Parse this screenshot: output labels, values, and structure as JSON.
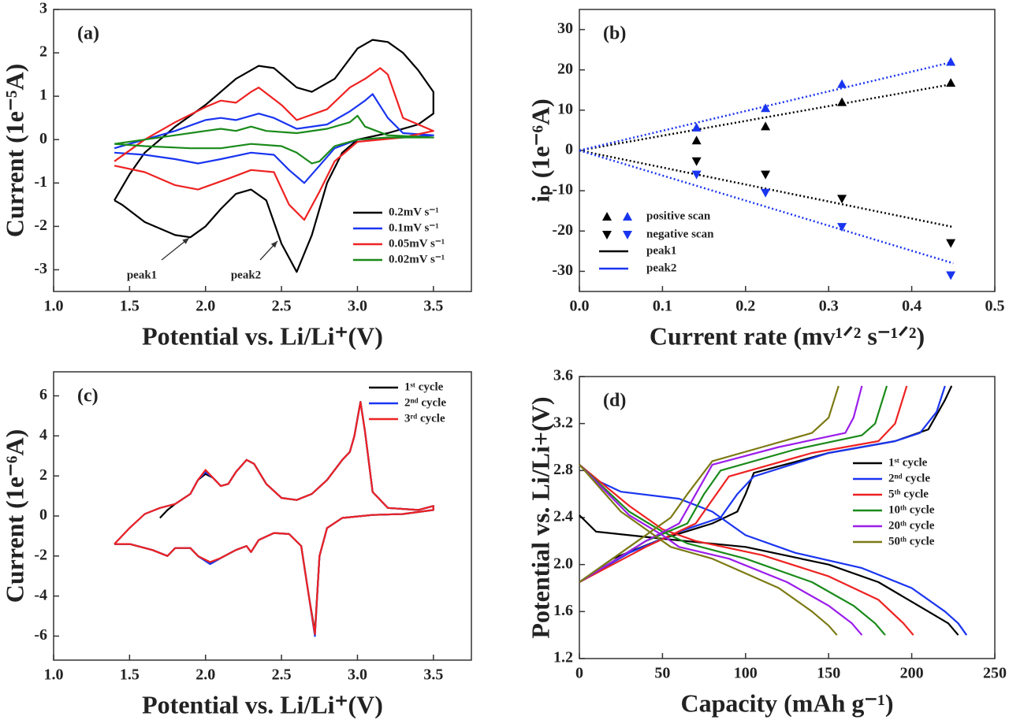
{
  "chart_data": [
    {
      "type": "line",
      "title": "(a)",
      "xlabel": "Potential vs. Li/Li⁺(V)",
      "ylabel": "Current (1e⁻⁵A)",
      "xlim": [
        1.0,
        3.75
      ],
      "ylim": [
        -3.5,
        3
      ],
      "xticks": [
        {
          "value": 1,
          "label": "1.0"
        },
        1.5,
        {
          "value": 2,
          "label": "2.0"
        },
        2.5,
        {
          "value": 3,
          "label": "3.0"
        },
        3.5
      ],
      "yticks": [
        -3,
        -2,
        -1,
        0,
        1,
        2,
        3
      ],
      "grid": false,
      "legend": "lower right",
      "annotations": [
        "peak1",
        "peak2"
      ],
      "series": [
        {
          "name": "0.2mV s⁻¹",
          "color": "#000000",
          "x": [
            1.4,
            1.5,
            1.6,
            1.8,
            2.0,
            2.2,
            2.35,
            2.45,
            2.6,
            2.7,
            2.85,
            3.0,
            3.1,
            3.2,
            3.3,
            3.4,
            3.5,
            3.5,
            3.4,
            3.2,
            3.0,
            2.9,
            2.8,
            2.7,
            2.6,
            2.5,
            2.4,
            2.3,
            2.2,
            2.1,
            2.0,
            1.9,
            1.8,
            1.6,
            1.45,
            1.4
          ],
          "values": [
            -1.4,
            -0.8,
            -0.3,
            0.3,
            0.8,
            1.4,
            1.7,
            1.65,
            1.2,
            1.1,
            1.4,
            2.1,
            2.3,
            2.25,
            2.0,
            1.6,
            1.1,
            0.6,
            0.35,
            0.15,
            0,
            -0.3,
            -1.0,
            -2.2,
            -3.05,
            -2.4,
            -1.4,
            -1.15,
            -1.25,
            -1.6,
            -2.0,
            -2.25,
            -2.2,
            -1.9,
            -1.5,
            -1.4
          ]
        },
        {
          "name": "0.1mV s⁻¹",
          "color": "#1a35f0",
          "x": [
            1.4,
            1.6,
            1.8,
            2.0,
            2.1,
            2.2,
            2.35,
            2.45,
            2.6,
            2.8,
            2.95,
            3.05,
            3.1,
            3.2,
            3.3,
            3.5,
            3.3,
            3.0,
            2.85,
            2.75,
            2.65,
            2.55,
            2.45,
            2.3,
            2.1,
            1.95,
            1.8,
            1.6,
            1.4
          ],
          "values": [
            -0.2,
            0,
            0.2,
            0.45,
            0.5,
            0.45,
            0.6,
            0.5,
            0.25,
            0.35,
            0.65,
            0.9,
            1.05,
            0.5,
            0.15,
            0.1,
            0.05,
            0,
            -0.2,
            -0.6,
            -1.0,
            -0.7,
            -0.35,
            -0.3,
            -0.45,
            -0.55,
            -0.45,
            -0.35,
            -0.3
          ]
        },
        {
          "name": "0.05mV s⁻¹",
          "color": "#ee2222",
          "x": [
            1.4,
            1.6,
            1.8,
            2.0,
            2.1,
            2.2,
            2.3,
            2.35,
            2.5,
            2.6,
            2.8,
            2.95,
            3.05,
            3.15,
            3.2,
            3.3,
            3.5,
            3.3,
            3.0,
            2.85,
            2.75,
            2.65,
            2.55,
            2.45,
            2.3,
            2.15,
            1.95,
            1.8,
            1.6,
            1.4
          ],
          "values": [
            -0.5,
            0,
            0.4,
            0.75,
            0.9,
            0.85,
            1.1,
            1.2,
            0.8,
            0.45,
            0.7,
            1.2,
            1.4,
            1.65,
            1.5,
            0.5,
            0.2,
            0.05,
            -0.05,
            -0.5,
            -1.2,
            -1.85,
            -1.5,
            -0.75,
            -0.7,
            -0.9,
            -1.15,
            -1.05,
            -0.75,
            -0.6
          ]
        },
        {
          "name": "0.02mV s⁻¹",
          "color": "#1a8a1a",
          "x": [
            1.4,
            1.6,
            1.8,
            2.0,
            2.1,
            2.2,
            2.3,
            2.4,
            2.6,
            2.8,
            2.95,
            3.0,
            3.05,
            3.2,
            3.5,
            3.2,
            3.0,
            2.85,
            2.75,
            2.7,
            2.6,
            2.5,
            2.3,
            2.1,
            1.9,
            1.6,
            1.4
          ],
          "values": [
            -0.1,
            0,
            0.1,
            0.2,
            0.25,
            0.2,
            0.3,
            0.2,
            0.15,
            0.25,
            0.4,
            0.55,
            0.3,
            0.1,
            0.05,
            0.05,
            0,
            -0.15,
            -0.5,
            -0.55,
            -0.3,
            -0.15,
            -0.1,
            -0.2,
            -0.2,
            -0.15,
            -0.1
          ]
        }
      ]
    },
    {
      "type": "scatter",
      "title": "(b)",
      "xlabel": "Current rate (mv¹ᐟ² s⁻¹ᐟ²)",
      "ylabel": "iₚ (1e⁻⁶A)",
      "xlim": [
        0,
        0.5
      ],
      "ylim": [
        -35,
        35
      ],
      "xticks": [
        {
          "value": 0,
          "label": "0.0"
        },
        0.1,
        0.2,
        0.3,
        0.4,
        0.5
      ],
      "yticks": [
        -30,
        -20,
        -10,
        0,
        10,
        20,
        30
      ],
      "grid": false,
      "legend": "lower left",
      "marker_legend": [
        "positive scan",
        "negative scan"
      ],
      "x": [
        0.141,
        0.224,
        0.316,
        0.447
      ],
      "fit_x": [
        0,
        0.45
      ],
      "series": [
        {
          "name": "peak1",
          "color": "#000000",
          "positive": [
            2.5,
            6,
            12,
            16.8
          ],
          "negative": [
            -2.7,
            -6,
            -12,
            -23
          ],
          "fit_positive": [
            0,
            16.5
          ],
          "fit_negative": [
            0,
            -19
          ]
        },
        {
          "name": "peak2",
          "color": "#1a35f0",
          "positive": [
            5.7,
            10.5,
            16.5,
            22
          ],
          "negative": [
            -6,
            -10.5,
            -19,
            -31
          ],
          "fit_positive": [
            0,
            22
          ],
          "fit_negative": [
            0,
            -28
          ]
        }
      ]
    },
    {
      "type": "line",
      "title": "(c)",
      "xlabel": "Potential vs. Li/Li⁺(V)",
      "ylabel": "Current (1e⁻⁶A)",
      "xlim": [
        1.0,
        3.75
      ],
      "ylim": [
        -7.2,
        7.2
      ],
      "xticks": [
        {
          "value": 1,
          "label": "1.0"
        },
        1.5,
        {
          "value": 2,
          "label": "2.0"
        },
        2.5,
        {
          "value": 3,
          "label": "3.0"
        },
        3.5
      ],
      "yticks": [
        -6,
        -4,
        -2,
        0,
        2,
        4,
        6
      ],
      "grid": false,
      "legend": "upper right",
      "series": [
        {
          "name": "1ˢᵗ cycle",
          "color": "#000000",
          "x": [
            1.7,
            1.75,
            1.8,
            1.9,
            1.95,
            2.0,
            2.05,
            2.1,
            2.15,
            2.2,
            2.27,
            2.32,
            2.4,
            2.5,
            2.6,
            2.7,
            2.8,
            2.9,
            2.95,
            2.98,
            3.02,
            3.05,
            3.1,
            3.2,
            3.4,
            3.5,
            3.5,
            3.3,
            3.1,
            2.9,
            2.8,
            2.75,
            2.72,
            2.68,
            2.63,
            2.55,
            2.45,
            2.35,
            2.3,
            2.27,
            2.2,
            2.1,
            2.03,
            1.95,
            1.9,
            1.8,
            1.75,
            1.65,
            1.5,
            1.4
          ],
          "values": [
            -0.1,
            0.3,
            0.6,
            1.1,
            1.8,
            2.1,
            1.9,
            1.5,
            1.6,
            2.2,
            2.8,
            2.6,
            1.6,
            0.9,
            0.8,
            1.1,
            1.8,
            2.8,
            3.2,
            4.0,
            5.7,
            4.2,
            1.2,
            0.4,
            0.3,
            0.5,
            0.3,
            0.1,
            0.05,
            -0.1,
            -0.6,
            -2.0,
            -5.8,
            -4.0,
            -1.5,
            -0.9,
            -0.85,
            -1.2,
            -1.8,
            -1.5,
            -1.7,
            -2.1,
            -2.4,
            -2.0,
            -1.6,
            -1.6,
            -2.0,
            -1.7,
            -1.4,
            -1.4
          ]
        },
        {
          "name": "2ⁿᵈ cycle",
          "color": "#1a35f0",
          "x": [
            1.4,
            1.5,
            1.6,
            1.7,
            1.8,
            1.9,
            1.95,
            2.0,
            2.05,
            2.1,
            2.15,
            2.2,
            2.27,
            2.32,
            2.4,
            2.5,
            2.6,
            2.7,
            2.8,
            2.9,
            2.95,
            2.98,
            3.02,
            3.05,
            3.1,
            3.2,
            3.4,
            3.5,
            3.5,
            3.3,
            3.1,
            2.9,
            2.8,
            2.75,
            2.72,
            2.68,
            2.63,
            2.55,
            2.45,
            2.35,
            2.3,
            2.27,
            2.2,
            2.1,
            2.03,
            1.95,
            1.9,
            1.8,
            1.75,
            1.65,
            1.5,
            1.4
          ],
          "values": [
            -1.4,
            -0.6,
            0.1,
            0.4,
            0.6,
            1.1,
            1.8,
            2.2,
            1.9,
            1.5,
            1.6,
            2.2,
            2.8,
            2.6,
            1.6,
            0.9,
            0.8,
            1.1,
            1.8,
            2.8,
            3.2,
            4.0,
            5.7,
            4.2,
            1.2,
            0.4,
            0.3,
            0.5,
            0.3,
            0.1,
            0.05,
            -0.1,
            -0.6,
            -2.0,
            -6.0,
            -4.0,
            -1.5,
            -0.9,
            -0.85,
            -1.2,
            -1.8,
            -1.5,
            -1.7,
            -2.1,
            -2.4,
            -2.0,
            -1.6,
            -1.6,
            -2.0,
            -1.7,
            -1.4,
            -1.4
          ]
        },
        {
          "name": "3ʳᵈ cycle",
          "color": "#ee2222",
          "x": [
            1.4,
            1.5,
            1.6,
            1.7,
            1.8,
            1.9,
            1.95,
            2.0,
            2.05,
            2.1,
            2.15,
            2.2,
            2.27,
            2.32,
            2.4,
            2.5,
            2.6,
            2.7,
            2.8,
            2.9,
            2.95,
            2.98,
            3.02,
            3.05,
            3.1,
            3.2,
            3.4,
            3.5,
            3.5,
            3.3,
            3.1,
            2.9,
            2.8,
            2.75,
            2.72,
            2.68,
            2.63,
            2.55,
            2.45,
            2.35,
            2.3,
            2.27,
            2.2,
            2.1,
            2.03,
            1.95,
            1.9,
            1.8,
            1.75,
            1.65,
            1.5,
            1.4
          ],
          "values": [
            -1.4,
            -0.6,
            0.1,
            0.4,
            0.6,
            1.1,
            1.8,
            2.3,
            1.9,
            1.5,
            1.6,
            2.2,
            2.8,
            2.6,
            1.6,
            0.9,
            0.8,
            1.1,
            1.8,
            2.8,
            3.2,
            4.0,
            5.7,
            4.2,
            1.2,
            0.4,
            0.3,
            0.5,
            0.3,
            0.1,
            0.05,
            -0.1,
            -0.6,
            -2.0,
            -5.9,
            -4.0,
            -1.5,
            -0.9,
            -0.85,
            -1.2,
            -1.8,
            -1.5,
            -1.7,
            -2.1,
            -2.3,
            -2.0,
            -1.6,
            -1.6,
            -2.0,
            -1.7,
            -1.4,
            -1.4
          ]
        }
      ]
    },
    {
      "type": "line",
      "title": "(d)",
      "xlabel": "Capacity (mAh g⁻¹)",
      "ylabel": "Potential vs. Li/Li+(V)",
      "xlim": [
        0,
        250
      ],
      "ylim": [
        1.2,
        3.6
      ],
      "xticks": [
        0,
        50,
        100,
        150,
        200,
        250
      ],
      "yticks": [
        1.2,
        1.6,
        {
          "value": 2,
          "label": "2.0"
        },
        2.4,
        2.8,
        3.2,
        3.6
      ],
      "grid": false,
      "legend": "right",
      "series": [
        {
          "name": "1ˢᵗ cycle",
          "color": "#000000",
          "discharge_x": [
            0,
            10,
            50,
            100,
            150,
            180,
            210,
            222,
            228
          ],
          "discharge": [
            2.42,
            2.28,
            2.22,
            2.15,
            2.0,
            1.85,
            1.6,
            1.5,
            1.4
          ],
          "charge_x": [
            0,
            20,
            50,
            80,
            95,
            100,
            105,
            150,
            190,
            210,
            220,
            224
          ],
          "charge": [
            1.85,
            2.05,
            2.22,
            2.35,
            2.45,
            2.6,
            2.78,
            2.95,
            3.05,
            3.15,
            3.4,
            3.52
          ]
        },
        {
          "name": "2ⁿᵈ cycle",
          "color": "#1a35f0",
          "discharge_x": [
            0,
            10,
            25,
            60,
            80,
            100,
            130,
            170,
            200,
            220,
            228,
            233
          ],
          "discharge": [
            2.85,
            2.72,
            2.62,
            2.56,
            2.45,
            2.25,
            2.1,
            1.97,
            1.8,
            1.6,
            1.5,
            1.4
          ],
          "charge_x": [
            0,
            30,
            60,
            85,
            95,
            105,
            150,
            190,
            205,
            215,
            220
          ],
          "charge": [
            1.85,
            2.1,
            2.28,
            2.4,
            2.6,
            2.75,
            2.95,
            3.05,
            3.12,
            3.3,
            3.52
          ]
        },
        {
          "name": "5ᵗʰ cycle",
          "color": "#ee2222",
          "discharge_x": [
            0,
            30,
            50,
            70,
            110,
            150,
            180,
            195,
            201
          ],
          "discharge": [
            2.85,
            2.5,
            2.3,
            2.2,
            2.08,
            1.9,
            1.7,
            1.5,
            1.4
          ],
          "charge_x": [
            0,
            40,
            70,
            80,
            90,
            140,
            180,
            190,
            197
          ],
          "charge": [
            1.85,
            2.15,
            2.35,
            2.55,
            2.75,
            2.95,
            3.05,
            3.2,
            3.52
          ]
        },
        {
          "name": "10ᵗʰ cycle",
          "color": "#1a8a1a",
          "discharge_x": [
            0,
            30,
            50,
            65,
            100,
            140,
            165,
            178,
            184
          ],
          "discharge": [
            2.85,
            2.45,
            2.28,
            2.18,
            2.05,
            1.85,
            1.65,
            1.5,
            1.4
          ],
          "charge_x": [
            0,
            40,
            65,
            75,
            85,
            130,
            170,
            178,
            185
          ],
          "charge": [
            1.85,
            2.2,
            2.35,
            2.6,
            2.8,
            2.98,
            3.1,
            3.2,
            3.52
          ]
        },
        {
          "name": "20ᵗʰ cycle",
          "color": "#9b1dea",
          "discharge_x": [
            0,
            30,
            50,
            60,
            90,
            125,
            150,
            164,
            170
          ],
          "discharge": [
            2.85,
            2.42,
            2.25,
            2.15,
            2.05,
            1.85,
            1.65,
            1.5,
            1.4
          ],
          "charge_x": [
            0,
            40,
            60,
            70,
            80,
            120,
            160,
            165,
            170
          ],
          "charge": [
            1.85,
            2.2,
            2.35,
            2.6,
            2.85,
            3.0,
            3.12,
            3.25,
            3.52
          ]
        },
        {
          "name": "50ᵗʰ cycle",
          "color": "#7c7a14",
          "discharge_x": [
            0,
            25,
            45,
            55,
            80,
            120,
            140,
            150,
            155
          ],
          "discharge": [
            2.85,
            2.45,
            2.25,
            2.15,
            2.05,
            1.8,
            1.6,
            1.48,
            1.4
          ],
          "charge_x": [
            0,
            35,
            55,
            65,
            80,
            110,
            140,
            150,
            156
          ],
          "charge": [
            1.85,
            2.2,
            2.4,
            2.6,
            2.88,
            3.0,
            3.12,
            3.25,
            3.52
          ]
        }
      ]
    }
  ]
}
